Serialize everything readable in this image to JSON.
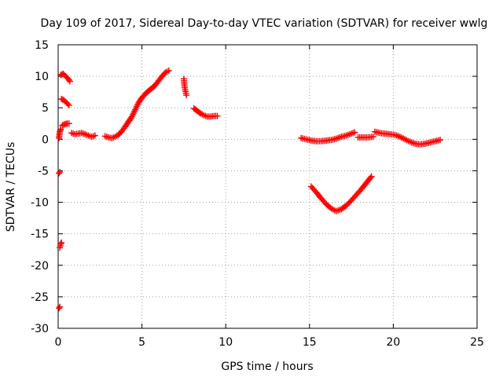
{
  "chart_data": {
    "type": "scatter",
    "title": "Day 109 of 2017, Sidereal Day-to-day VTEC variation (SDTVAR) for receiver wwlg",
    "xlabel": "GPS time / hours",
    "ylabel": "SDTVAR / TECUs",
    "xlim": [
      0,
      25
    ],
    "ylim": [
      -30,
      15
    ],
    "xticks": [
      0,
      5,
      10,
      15,
      20,
      25
    ],
    "yticks": [
      -30,
      -25,
      -20,
      -15,
      -10,
      -5,
      0,
      5,
      10,
      15
    ],
    "xtick_labels": [
      "0",
      "5",
      "10",
      "15",
      "20",
      "25"
    ],
    "ytick_labels": [
      "-30",
      "-25",
      "-20",
      "-15",
      "-10",
      "-5",
      "0",
      "5",
      "10",
      "15"
    ],
    "grid": true,
    "marker": "plus",
    "colors": {
      "series": "#ff0000",
      "grid": "#a0a0a0",
      "axis": "#000000"
    },
    "series": [
      {
        "name": "sdtvar",
        "segments": [
          [
            [
              0.05,
              -26.8
            ],
            [
              0.1,
              -26.6
            ]
          ],
          [
            [
              0.1,
              -17.2
            ],
            [
              0.15,
              -16.6
            ],
            [
              0.2,
              -16.4
            ]
          ],
          [
            [
              0.05,
              -5.4
            ],
            [
              0.1,
              -5.2
            ]
          ],
          [
            [
              0.05,
              0.2
            ],
            [
              0.1,
              1.2
            ],
            [
              0.15,
              1.6
            ]
          ],
          [
            [
              0.15,
              10.2
            ],
            [
              0.3,
              10.4
            ],
            [
              0.45,
              10.0
            ],
            [
              0.6,
              9.6
            ],
            [
              0.7,
              9.2
            ]
          ],
          [
            [
              0.2,
              6.4
            ],
            [
              0.35,
              6.2
            ],
            [
              0.5,
              5.8
            ],
            [
              0.65,
              5.4
            ]
          ],
          [
            [
              0.25,
              2.2
            ],
            [
              0.4,
              2.4
            ],
            [
              0.55,
              2.5
            ],
            [
              0.65,
              2.5
            ]
          ],
          [
            [
              0.8,
              1.0
            ],
            [
              1.0,
              0.8
            ],
            [
              1.2,
              0.9
            ],
            [
              1.4,
              1.0
            ],
            [
              1.6,
              0.8
            ],
            [
              1.8,
              0.6
            ],
            [
              2.0,
              0.4
            ],
            [
              2.2,
              0.6
            ]
          ],
          [
            [
              2.8,
              0.5
            ],
            [
              3.0,
              0.3
            ],
            [
              3.2,
              0.2
            ],
            [
              3.4,
              0.4
            ],
            [
              3.6,
              0.7
            ],
            [
              3.8,
              1.3
            ],
            [
              4.0,
              2.0
            ],
            [
              4.2,
              2.8
            ],
            [
              4.4,
              3.6
            ],
            [
              4.6,
              4.7
            ],
            [
              4.8,
              5.8
            ],
            [
              5.0,
              6.6
            ],
            [
              5.2,
              7.2
            ],
            [
              5.4,
              7.7
            ],
            [
              5.6,
              8.1
            ],
            [
              5.8,
              8.6
            ],
            [
              6.0,
              9.3
            ],
            [
              6.2,
              10.0
            ],
            [
              6.4,
              10.6
            ],
            [
              6.6,
              10.9
            ]
          ],
          [
            [
              7.5,
              9.6
            ],
            [
              7.55,
              8.2
            ],
            [
              7.6,
              7.6
            ],
            [
              7.65,
              7.0
            ]
          ],
          [
            [
              8.1,
              4.9
            ],
            [
              8.3,
              4.5
            ],
            [
              8.5,
              4.1
            ],
            [
              8.7,
              3.8
            ],
            [
              8.9,
              3.6
            ],
            [
              9.1,
              3.6
            ],
            [
              9.3,
              3.7
            ],
            [
              9.5,
              3.7
            ]
          ],
          [
            [
              14.5,
              0.2
            ],
            [
              14.8,
              0.0
            ],
            [
              15.1,
              -0.2
            ],
            [
              15.4,
              -0.3
            ],
            [
              15.7,
              -0.3
            ],
            [
              16.0,
              -0.2
            ],
            [
              16.3,
              -0.1
            ],
            [
              16.6,
              0.1
            ],
            [
              16.9,
              0.4
            ],
            [
              17.2,
              0.6
            ],
            [
              17.5,
              0.9
            ],
            [
              17.7,
              1.1
            ]
          ],
          [
            [
              17.9,
              0.3
            ],
            [
              18.2,
              0.3
            ],
            [
              18.5,
              0.3
            ],
            [
              18.8,
              0.4
            ]
          ],
          [
            [
              18.9,
              1.2
            ],
            [
              19.2,
              1.0
            ],
            [
              19.5,
              0.9
            ],
            [
              19.8,
              0.8
            ],
            [
              20.1,
              0.7
            ],
            [
              20.4,
              0.4
            ],
            [
              20.7,
              0.0
            ],
            [
              21.0,
              -0.4
            ],
            [
              21.3,
              -0.7
            ],
            [
              21.6,
              -0.8
            ],
            [
              21.9,
              -0.7
            ],
            [
              22.2,
              -0.5
            ],
            [
              22.5,
              -0.3
            ],
            [
              22.8,
              -0.1
            ]
          ],
          [
            [
              15.1,
              -7.5
            ],
            [
              15.4,
              -8.4
            ],
            [
              15.7,
              -9.4
            ],
            [
              16.0,
              -10.3
            ],
            [
              16.3,
              -11.0
            ],
            [
              16.6,
              -11.4
            ],
            [
              16.9,
              -11.1
            ],
            [
              17.2,
              -10.5
            ],
            [
              17.5,
              -9.7
            ],
            [
              17.8,
              -8.8
            ],
            [
              18.1,
              -7.9
            ],
            [
              18.4,
              -6.9
            ],
            [
              18.7,
              -5.9
            ]
          ]
        ]
      }
    ]
  }
}
